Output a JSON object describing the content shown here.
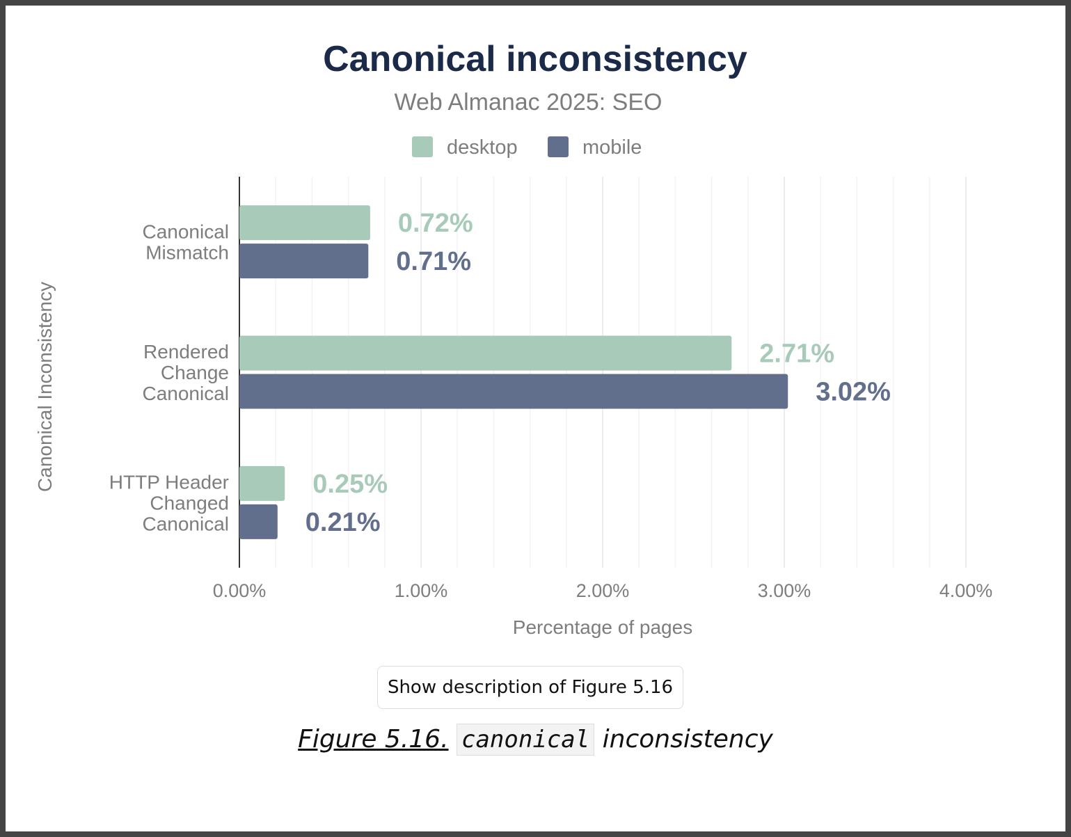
{
  "chart_data": {
    "type": "bar",
    "orientation": "horizontal",
    "title": "Canonical inconsistency",
    "subtitle": "Web Almanac 2025: SEO",
    "xlabel": "Percentage of pages",
    "ylabel": "Canonical Inconsistency",
    "categories": [
      [
        "Canonical",
        "Mismatch"
      ],
      [
        "Rendered",
        "Change",
        "Canonical"
      ],
      [
        "HTTP Header",
        "Changed",
        "Canonical"
      ]
    ],
    "series": [
      {
        "name": "desktop",
        "color": "#a7cab9",
        "values": [
          0.72,
          2.71,
          0.25
        ],
        "labels": [
          "0.72%",
          "2.71%",
          "0.25%"
        ]
      },
      {
        "name": "mobile",
        "color": "#626f8c",
        "values": [
          0.71,
          3.02,
          0.21
        ],
        "labels": [
          "0.71%",
          "3.02%",
          "0.21%"
        ]
      }
    ],
    "xlim": [
      0,
      4
    ],
    "xticks": [
      0,
      1,
      2,
      3,
      4
    ],
    "xtick_labels": [
      "0.00%",
      "1.00%",
      "2.00%",
      "3.00%",
      "4.00%"
    ],
    "grid": true,
    "legend_position": "top-center"
  },
  "description_button": {
    "label": "Show description of Figure 5.16"
  },
  "caption": {
    "figure_link": "Figure 5.16.",
    "code": "canonical",
    "text": "inconsistency"
  }
}
